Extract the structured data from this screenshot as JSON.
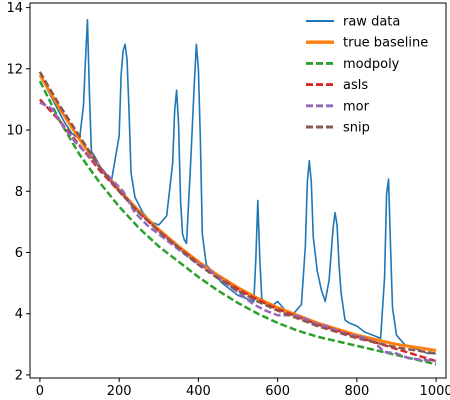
{
  "chart_data": {
    "type": "line",
    "title": "",
    "xlabel": "",
    "ylabel": "",
    "xlim": [
      -25,
      1025
    ],
    "ylim": [
      1.9,
      14.15
    ],
    "x_ticks": [
      0,
      200,
      400,
      600,
      800,
      1000
    ],
    "y_ticks": [
      2,
      4,
      6,
      8,
      10,
      12,
      14
    ],
    "grid": false,
    "legend_position": "top-right",
    "legend": [
      "raw data",
      "true baseline",
      "modpoly",
      "asls",
      "mor",
      "snip"
    ],
    "colors": {
      "raw data": "#1f77b4",
      "true baseline": "#ff7f0e",
      "modpoly": "#2ca02c",
      "asls": "#d62728",
      "mor": "#9467bd",
      "snip": "#8c564b"
    },
    "series": [
      {
        "name": "raw data",
        "style": "solid",
        "x": [
          0,
          20,
          40,
          60,
          80,
          100,
          110,
          115,
          120,
          125,
          130,
          140,
          160,
          180,
          200,
          205,
          210,
          215,
          220,
          225,
          230,
          240,
          260,
          280,
          300,
          320,
          335,
          340,
          345,
          350,
          355,
          360,
          365,
          370,
          380,
          390,
          395,
          400,
          405,
          410,
          420,
          440,
          460,
          480,
          500,
          520,
          540,
          545,
          550,
          555,
          560,
          580,
          600,
          620,
          640,
          660,
          670,
          675,
          680,
          685,
          690,
          700,
          710,
          720,
          730,
          740,
          745,
          750,
          755,
          760,
          770,
          780,
          800,
          820,
          840,
          860,
          870,
          875,
          880,
          885,
          890,
          900,
          920,
          940,
          960,
          980,
          1000
        ],
        "y": [
          11.9,
          11.3,
          10.8,
          10.3,
          9.9,
          9.7,
          10.8,
          12.3,
          13.6,
          11.2,
          9.3,
          9.1,
          8.6,
          8.3,
          9.8,
          11.8,
          12.6,
          12.8,
          12.3,
          10.6,
          8.6,
          7.8,
          7.3,
          7.0,
          6.9,
          7.2,
          8.9,
          10.6,
          11.3,
          10.2,
          7.7,
          6.6,
          6.4,
          6.3,
          8.8,
          11.6,
          12.8,
          12.0,
          9.7,
          6.6,
          5.6,
          5.3,
          5.0,
          4.8,
          4.6,
          4.5,
          4.4,
          5.8,
          7.7,
          5.8,
          4.5,
          4.2,
          4.4,
          4.1,
          4.0,
          4.3,
          6.2,
          8.3,
          9.0,
          8.3,
          6.5,
          5.4,
          4.8,
          4.4,
          5.1,
          6.8,
          7.3,
          6.9,
          5.6,
          4.7,
          3.8,
          3.7,
          3.6,
          3.4,
          3.3,
          3.2,
          5.2,
          7.9,
          8.4,
          6.2,
          4.2,
          3.3,
          3.0,
          2.9,
          2.8,
          2.7,
          2.7
        ]
      },
      {
        "name": "true baseline",
        "style": "thick-solid",
        "x": [
          0,
          50,
          100,
          150,
          200,
          250,
          300,
          350,
          400,
          450,
          500,
          550,
          600,
          650,
          700,
          750,
          800,
          850,
          900,
          950,
          1000
        ],
        "y": [
          11.8,
          10.7,
          9.7,
          8.8,
          8.05,
          7.35,
          6.75,
          6.2,
          5.7,
          5.25,
          4.85,
          4.5,
          4.2,
          3.95,
          3.7,
          3.5,
          3.3,
          3.15,
          3.0,
          2.9,
          2.8
        ]
      },
      {
        "name": "modpoly",
        "style": "dashed",
        "x": [
          0,
          50,
          100,
          150,
          200,
          250,
          300,
          350,
          400,
          450,
          500,
          550,
          600,
          650,
          700,
          750,
          800,
          850,
          900,
          950,
          1000
        ],
        "y": [
          11.6,
          10.3,
          9.2,
          8.3,
          7.5,
          6.8,
          6.2,
          5.7,
          5.2,
          4.75,
          4.35,
          4.0,
          3.7,
          3.45,
          3.25,
          3.1,
          2.95,
          2.8,
          2.65,
          2.5,
          2.35
        ]
      },
      {
        "name": "asls",
        "style": "dashed",
        "x": [
          0,
          50,
          100,
          150,
          200,
          250,
          300,
          350,
          400,
          450,
          500,
          550,
          600,
          650,
          700,
          750,
          800,
          850,
          900,
          950,
          1000
        ],
        "y": [
          11.0,
          10.3,
          9.5,
          8.7,
          8.0,
          7.3,
          6.7,
          6.15,
          5.65,
          5.2,
          4.8,
          4.45,
          4.15,
          3.9,
          3.65,
          3.45,
          3.25,
          3.05,
          2.85,
          2.65,
          2.45
        ]
      },
      {
        "name": "mor",
        "style": "dashed",
        "x": [
          0,
          30,
          60,
          90,
          120,
          150,
          180,
          210,
          240,
          270,
          300,
          330,
          360,
          390,
          420,
          450,
          480,
          510,
          540,
          570,
          600,
          630,
          660,
          690,
          720,
          750,
          780,
          810,
          840,
          870,
          900,
          930,
          960,
          1000
        ],
        "y": [
          10.9,
          10.7,
          10.1,
          9.6,
          9.2,
          8.8,
          8.4,
          8.0,
          7.3,
          6.9,
          6.6,
          6.3,
          6.0,
          5.7,
          5.5,
          5.2,
          4.9,
          4.6,
          4.3,
          4.1,
          3.95,
          3.95,
          3.9,
          3.7,
          3.6,
          3.45,
          3.3,
          3.25,
          3.1,
          2.75,
          2.7,
          2.55,
          2.5,
          2.45
        ]
      },
      {
        "name": "snip",
        "style": "dashed",
        "x": [
          0,
          50,
          100,
          150,
          200,
          250,
          300,
          350,
          400,
          450,
          500,
          550,
          600,
          650,
          700,
          750,
          800,
          850,
          900,
          950,
          1000
        ],
        "y": [
          11.9,
          10.8,
          9.8,
          8.8,
          8.0,
          7.3,
          6.7,
          6.15,
          5.6,
          5.15,
          4.75,
          4.4,
          4.1,
          3.85,
          3.6,
          3.4,
          3.2,
          3.05,
          2.9,
          2.8,
          2.7
        ]
      }
    ]
  }
}
